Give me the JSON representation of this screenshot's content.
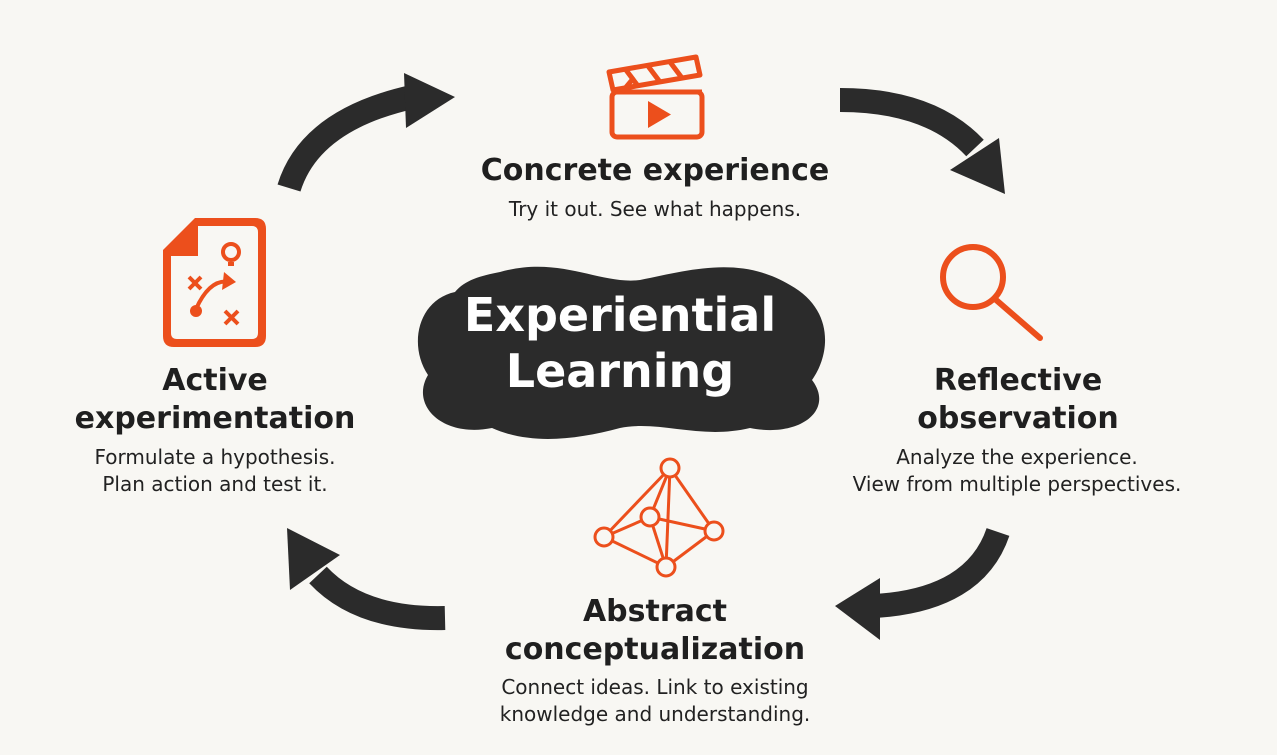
{
  "center": {
    "line1": "Experiential",
    "line2": "Learning"
  },
  "stages": {
    "concrete": {
      "title": "Concrete experience",
      "desc": "Try it out. See what happens."
    },
    "reflective": {
      "title_line1": "Reflective",
      "title_line2": "observation",
      "desc_line1": "Analyze the experience.",
      "desc_line2": "View from multiple perspectives."
    },
    "abstract": {
      "title_line1": "Abstract",
      "title_line2": "conceptualization",
      "desc_line1": "Connect ideas. Link to existing",
      "desc_line2": "knowledge and understanding."
    },
    "active": {
      "title_line1": "Active",
      "title_line2": "experimentation",
      "desc_line1": "Formulate a hypothesis.",
      "desc_line2": "Plan action and test it."
    }
  },
  "icons": {
    "concrete": "clapperboard-icon",
    "reflective": "magnifier-icon",
    "abstract": "network-icon",
    "active": "strategy-document-icon"
  },
  "colors": {
    "accent": "#ec4f1c",
    "dark": "#2b2b2b",
    "background": "#f8f7f3"
  }
}
